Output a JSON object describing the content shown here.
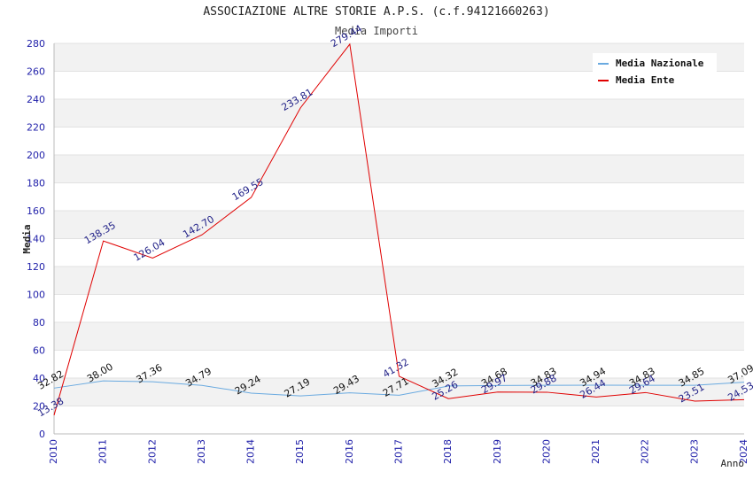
{
  "title": "ASSOCIAZIONE ALTRE STORIE A.P.S. (c.f.94121660263)",
  "subtitle": "Media Importi",
  "chart_data": {
    "type": "line",
    "x": [
      "2010",
      "2011",
      "2012",
      "2013",
      "2014",
      "2015",
      "2016",
      "2017",
      "2018",
      "2019",
      "2020",
      "2021",
      "2022",
      "2023",
      "2024"
    ],
    "ylabel": "Media",
    "xlabel": "Anno",
    "ylim": [
      0,
      280
    ],
    "yticks": [
      0,
      20,
      40,
      60,
      80,
      100,
      120,
      140,
      160,
      180,
      200,
      220,
      240,
      260,
      280
    ],
    "grid": true,
    "legend_position": "top-right",
    "series": [
      {
        "name": "Media Nazionale",
        "color": "#6aaae0",
        "values": [
          32.82,
          38.0,
          37.36,
          34.79,
          29.24,
          27.19,
          29.43,
          27.71,
          34.32,
          34.68,
          34.83,
          34.94,
          34.83,
          34.85,
          37.09
        ],
        "labels": [
          "32.82",
          "38.00",
          "37.36",
          "34.79",
          "29.24",
          "27.19",
          "29.43",
          "27.71",
          "34.32",
          "34.68",
          "34.83",
          "34.94",
          "34.83",
          "34.85",
          "37.09"
        ]
      },
      {
        "name": "Media Ente",
        "color": "#e00000",
        "values": [
          13.38,
          138.35,
          126.04,
          142.7,
          169.55,
          233.81,
          279.44,
          41.32,
          25.26,
          29.97,
          29.88,
          26.44,
          29.64,
          23.51,
          24.53
        ],
        "labels": [
          "13.38",
          "138.35",
          "126.04",
          "142.70",
          "169.55",
          "233.81",
          "279.44",
          "41.32",
          "25.26",
          "29.97",
          "29.88",
          "26.44",
          "29.64",
          "23.51",
          "24.53"
        ]
      }
    ]
  }
}
